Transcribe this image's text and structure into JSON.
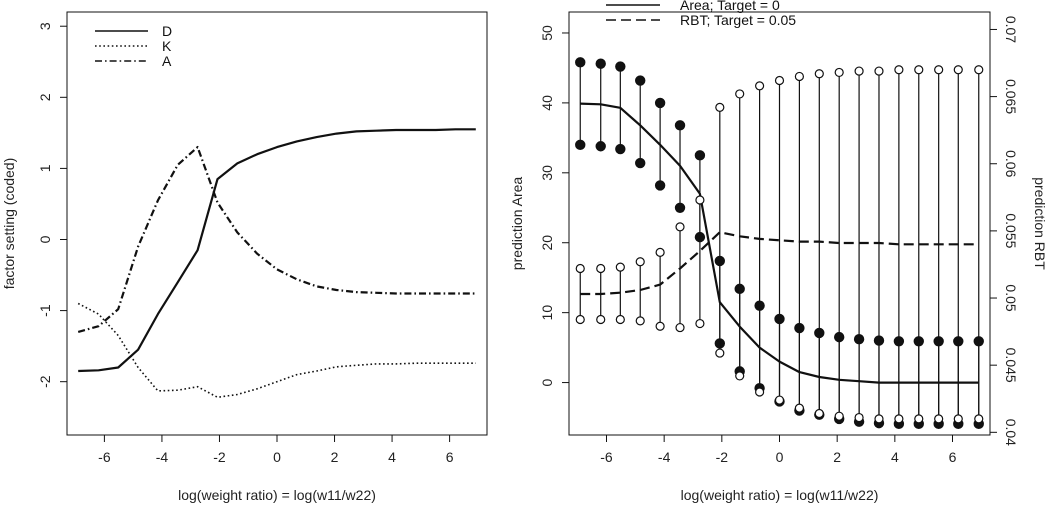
{
  "chart_data": [
    {
      "type": "line",
      "xlabel": "log(weight ratio) = log(w11/w22)",
      "ylabel": "factor setting (coded)",
      "xlim": [
        -7.3,
        7.3
      ],
      "ylim": [
        -2.75,
        3.2
      ],
      "xticks": [
        -6,
        -4,
        -2,
        0,
        2,
        4,
        6
      ],
      "yticks": [
        -2,
        -1,
        0,
        1,
        2,
        3
      ],
      "legend": "top-left",
      "series": [
        {
          "name": "D",
          "style": "solid",
          "x": [
            -6.91,
            -6.2,
            -5.52,
            -4.83,
            -4.14,
            -3.45,
            -2.76,
            -2.07,
            -1.38,
            -0.69,
            0.0,
            0.69,
            1.38,
            2.07,
            2.76,
            3.45,
            4.14,
            4.83,
            5.52,
            6.2,
            6.91
          ],
          "values": [
            -1.85,
            -1.84,
            -1.8,
            -1.55,
            -1.05,
            -0.6,
            -0.15,
            0.85,
            1.07,
            1.2,
            1.3,
            1.38,
            1.44,
            1.49,
            1.52,
            1.53,
            1.54,
            1.54,
            1.54,
            1.55,
            1.55
          ]
        },
        {
          "name": "K",
          "style": "dotted",
          "x": [
            -6.91,
            -6.2,
            -5.52,
            -4.83,
            -4.14,
            -3.45,
            -2.76,
            -2.07,
            -1.38,
            -0.69,
            0.0,
            0.69,
            1.38,
            2.07,
            2.76,
            3.45,
            4.14,
            4.83,
            5.52,
            6.2,
            6.91
          ],
          "values": [
            -0.9,
            -1.05,
            -1.35,
            -1.8,
            -2.13,
            -2.12,
            -2.07,
            -2.22,
            -2.18,
            -2.1,
            -2.0,
            -1.9,
            -1.85,
            -1.79,
            -1.77,
            -1.75,
            -1.75,
            -1.74,
            -1.74,
            -1.74,
            -1.74
          ]
        },
        {
          "name": "A",
          "style": "dashdot",
          "x": [
            -6.91,
            -6.2,
            -5.52,
            -4.83,
            -4.14,
            -3.45,
            -2.76,
            -2.07,
            -1.38,
            -0.69,
            0.0,
            0.69,
            1.38,
            2.07,
            2.76,
            3.45,
            4.14,
            4.83,
            5.52,
            6.2,
            6.91
          ],
          "values": [
            -1.3,
            -1.22,
            -0.98,
            -0.1,
            0.55,
            1.05,
            1.3,
            0.52,
            0.1,
            -0.2,
            -0.42,
            -0.56,
            -0.66,
            -0.71,
            -0.74,
            -0.75,
            -0.76,
            -0.76,
            -0.76,
            -0.76,
            -0.76
          ]
        }
      ]
    },
    {
      "type": "line",
      "xlabel": "log(weight ratio) = log(w11/w22)",
      "ylabel": "prediction Area",
      "ylabel_right": "prediction RBT",
      "xlim": [
        -7.3,
        7.3
      ],
      "ylim": [
        -7.5,
        53
      ],
      "ylim_right": [
        0.0398,
        0.0713
      ],
      "xticks": [
        -6,
        -4,
        -2,
        0,
        2,
        4,
        6
      ],
      "yticks": [
        0,
        10,
        20,
        30,
        40,
        50
      ],
      "yticks_right": [
        0.04,
        0.045,
        0.05,
        0.055,
        0.06,
        0.065,
        0.07
      ],
      "legend": "top",
      "x": [
        -6.91,
        -6.2,
        -5.52,
        -4.83,
        -4.14,
        -3.45,
        -2.76,
        -2.07,
        -1.38,
        -0.69,
        0.0,
        0.69,
        1.38,
        2.07,
        2.76,
        3.45,
        4.14,
        4.83,
        5.52,
        6.2,
        6.91
      ],
      "series": [
        {
          "name": "Area;  Target = 0",
          "style": "solid",
          "axis": "left",
          "values": [
            39.9,
            39.8,
            39.3,
            36.8,
            34.0,
            31.0,
            27.0,
            11.5,
            8.0,
            5.0,
            3.0,
            1.5,
            0.8,
            0.4,
            0.2,
            0.0,
            0.0,
            0.0,
            0.0,
            0.0,
            0.0
          ],
          "upper": [
            45.8,
            45.6,
            45.2,
            43.2,
            40.0,
            36.8,
            32.5,
            17.4,
            13.4,
            11.0,
            9.1,
            7.8,
            7.1,
            6.5,
            6.2,
            6.0,
            5.9,
            5.9,
            5.9,
            5.9,
            5.9
          ],
          "lower": [
            34.0,
            33.8,
            33.4,
            31.4,
            28.2,
            25.0,
            20.8,
            5.6,
            1.6,
            -0.8,
            -2.7,
            -4.0,
            -4.6,
            -5.2,
            -5.6,
            -5.8,
            -5.9,
            -5.9,
            -5.9,
            -5.9,
            -5.9
          ]
        },
        {
          "name": "RBT;  Target = 0.05",
          "style": "dashed",
          "axis": "right",
          "values": [
            0.0503,
            0.0503,
            0.0504,
            0.0506,
            0.051,
            0.0522,
            0.0535,
            0.0549,
            0.0546,
            0.0544,
            0.0543,
            0.0542,
            0.0542,
            0.0541,
            0.0541,
            0.0541,
            0.054,
            0.054,
            0.054,
            0.054,
            0.054
          ],
          "upper": [
            0.0522,
            0.0522,
            0.0523,
            0.0527,
            0.0534,
            0.0553,
            0.0573,
            0.0642,
            0.0652,
            0.0658,
            0.0662,
            0.0665,
            0.0667,
            0.0668,
            0.0669,
            0.0669,
            0.067,
            0.067,
            0.067,
            0.067,
            0.067
          ],
          "lower": [
            0.0484,
            0.0484,
            0.0484,
            0.0483,
            0.0479,
            0.0478,
            0.0481,
            0.0459,
            0.0442,
            0.043,
            0.0424,
            0.0418,
            0.0414,
            0.0412,
            0.0411,
            0.041,
            0.041,
            0.041,
            0.041,
            0.041,
            0.041
          ]
        }
      ]
    }
  ]
}
